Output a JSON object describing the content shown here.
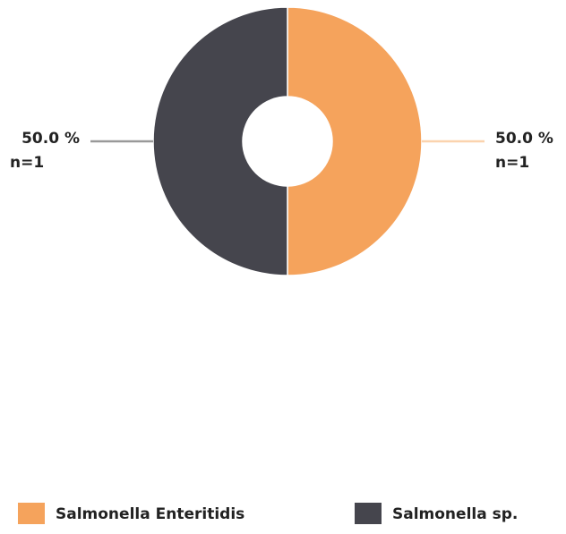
{
  "chart_data": {
    "type": "donut",
    "categories": [
      "Salmonella Enteritidis",
      "Salmonella sp."
    ],
    "values": [
      50,
      50
    ],
    "value_labels": [
      "50.0 %",
      "50.0 %"
    ],
    "counts": [
      1,
      1
    ],
    "count_labels": [
      "n=1",
      "n=1"
    ],
    "colors": [
      "#f5a35c",
      "#45454d"
    ],
    "legend": "bottom"
  }
}
